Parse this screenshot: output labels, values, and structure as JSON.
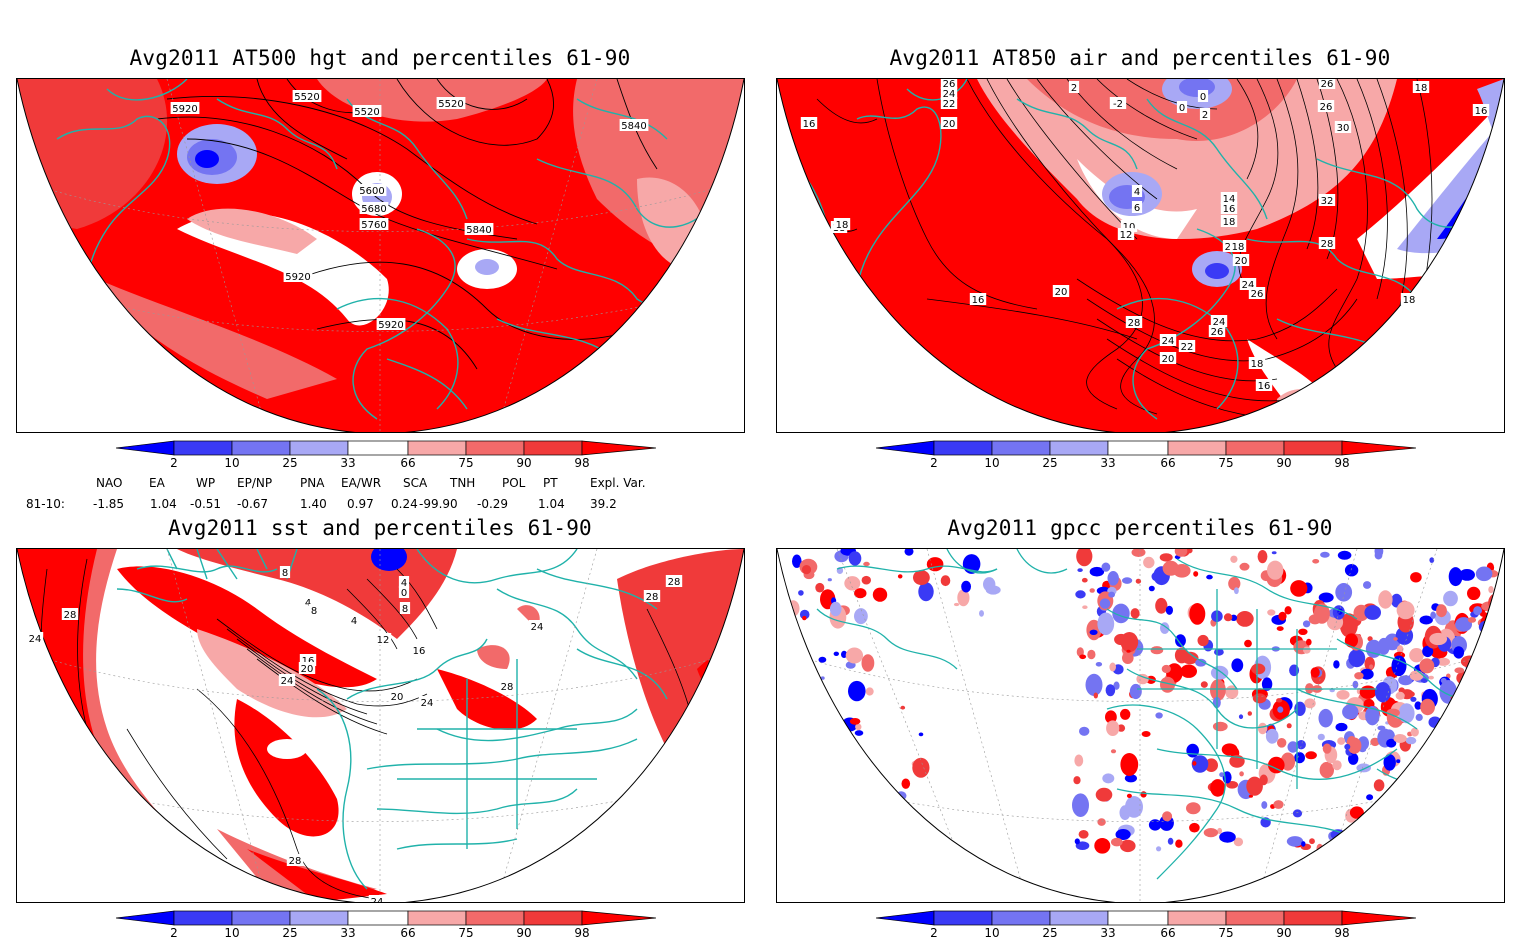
{
  "panels": [
    {
      "title": "Avg2011 AT500 hgt and percentiles 61-90",
      "labels": [
        "5920",
        "5520",
        "5520",
        "5520",
        "5840",
        "5600",
        "5680",
        "5760",
        "5840",
        "5920",
        "5920"
      ]
    },
    {
      "title": "Avg2011 AT850 air and percentiles 61-90",
      "labels": [
        "26",
        "24",
        "22",
        "20",
        "16",
        "2",
        "-2",
        "0",
        "0",
        "2",
        "26",
        "26",
        "30",
        "18",
        "16",
        "18",
        "4",
        "6",
        "10",
        "12",
        "14",
        "16",
        "18",
        "22",
        "18",
        "20",
        "24",
        "26",
        "32",
        "28",
        "18",
        "20",
        "16",
        "28",
        "24",
        "26",
        "24",
        "22",
        "20",
        "18",
        "16",
        "18"
      ]
    },
    {
      "title": "Avg2011 sst and percentiles 61-90",
      "labels": [
        "28",
        "24",
        "8",
        "4",
        "8",
        "4",
        "0",
        "4",
        "8",
        "12",
        "16",
        "20",
        "24",
        "16",
        "20",
        "24",
        "24",
        "28",
        "28",
        "28",
        "28",
        "24"
      ]
    },
    {
      "title": "Avg2011 gpcc percentiles 61-90",
      "labels": []
    }
  ],
  "colorbar": {
    "ticks": [
      "2",
      "10",
      "25",
      "33",
      "66",
      "75",
      "90",
      "98"
    ],
    "colors": [
      "#0000ff",
      "#3a3af5",
      "#7474f2",
      "#a8a8f5",
      "#ffffff",
      "#f7a8a8",
      "#f26a6a",
      "#f03a3a",
      "#ff0000"
    ]
  },
  "indices": {
    "headers": [
      "NAO",
      "EA",
      "WP",
      "EP/NP",
      "PNA",
      "EA/WR",
      "SCA",
      "TNH",
      "POL",
      "PT",
      "Expl. Var."
    ],
    "row_label": "81-10:",
    "values": [
      "-1.85",
      "1.04",
      "-0.51",
      "-0.67",
      "1.40",
      "0.97",
      "0.24",
      "-99.90",
      "-0.29",
      "1.04",
      "39.2"
    ]
  },
  "colors": {
    "land_outline": "#20b2aa",
    "warm": "#ff0000",
    "cool": "#0000ff"
  }
}
